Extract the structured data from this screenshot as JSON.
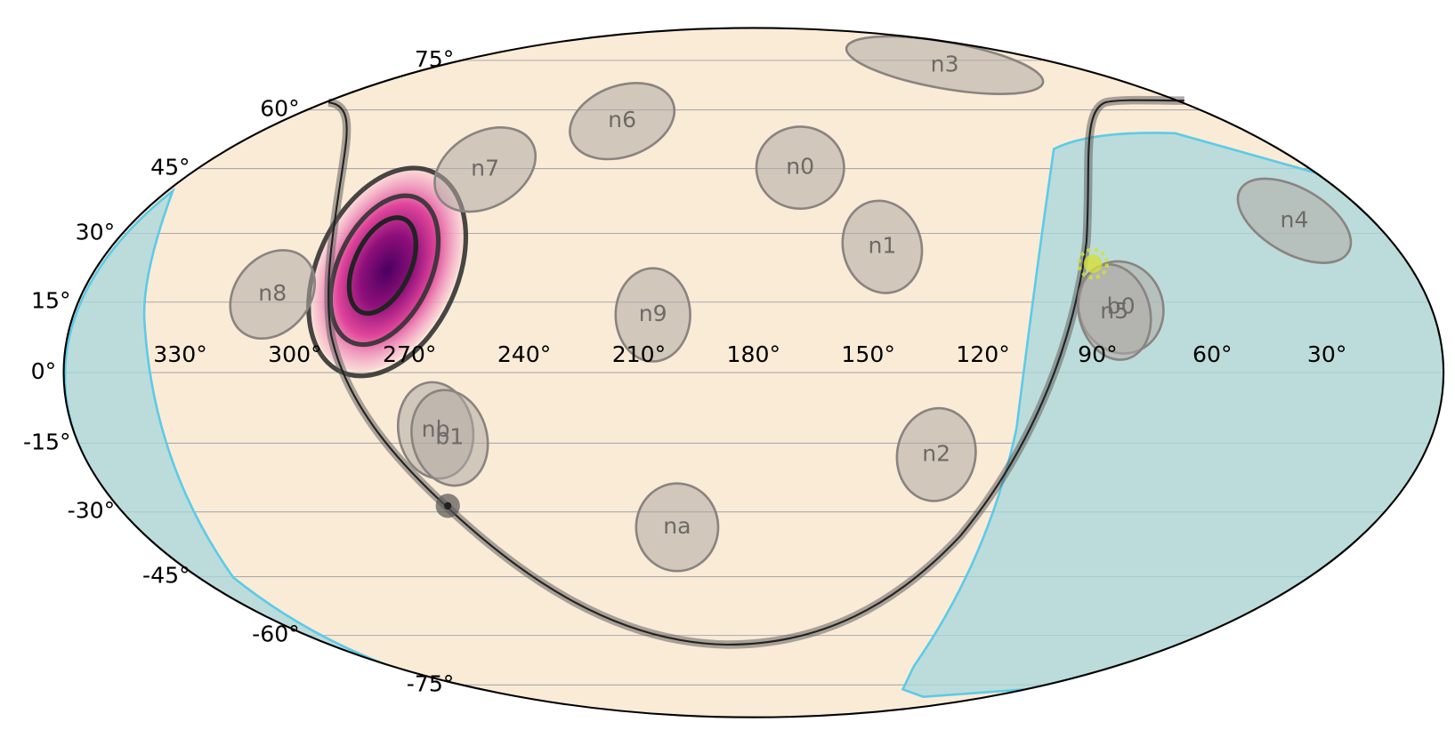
{
  "longitude_labels": [
    "330°",
    "300°",
    "270°",
    "240°",
    "210°",
    "180°",
    "150°",
    "120°",
    "90°",
    "60°",
    "30°"
  ],
  "latitude_labels": [
    "75°",
    "60°",
    "45°",
    "30°",
    "15°",
    "0°",
    "-15°",
    "-30°",
    "-45°",
    "-60°",
    "-75°"
  ],
  "detectors": [
    "n3",
    "n6",
    "n7",
    "n0",
    "n1",
    "n4",
    "n8",
    "n9",
    "b0",
    "n5",
    "nb",
    "b1",
    "n2",
    "na"
  ]
}
